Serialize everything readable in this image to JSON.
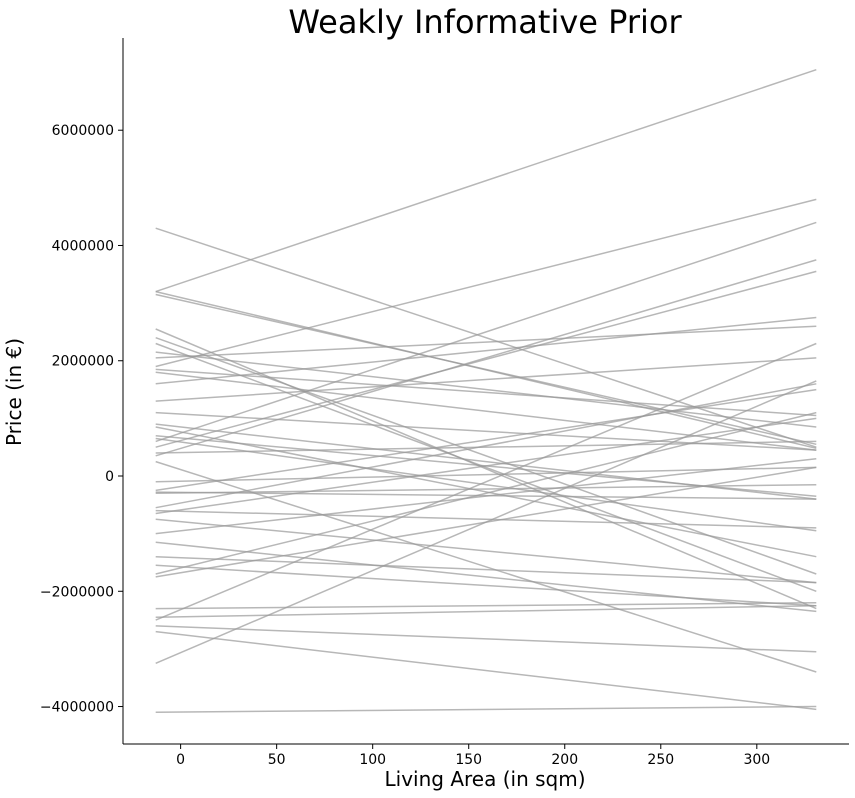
{
  "chart_data": {
    "type": "line",
    "title": "Weakly Informative Prior",
    "xlabel": "Living Area (in sqm)",
    "ylabel": "Price (in €)",
    "xlim": [
      -30,
      348
    ],
    "ylim": [
      -4650000,
      7600000
    ],
    "xticks": [
      0,
      50,
      100,
      150,
      200,
      250,
      300
    ],
    "xtick_labels": [
      "0",
      "50",
      "100",
      "150",
      "200",
      "250",
      "300"
    ],
    "yticks": [
      -4000000,
      -2000000,
      0,
      2000000,
      4000000,
      6000000
    ],
    "ytick_labels": [
      "−4000000",
      "−2000000",
      "0",
      "2000000",
      "4000000",
      "6000000"
    ],
    "grid": false,
    "line_color": "#999999",
    "line_alpha": 0.7,
    "x": [
      -13,
      331
    ],
    "series": [
      {
        "values": [
          4300000,
          500000
        ]
      },
      {
        "values": [
          3200000,
          7050000
        ]
      },
      {
        "values": [
          3200000,
          480000
        ]
      },
      {
        "values": [
          3150000,
          550000
        ]
      },
      {
        "values": [
          2550000,
          -2300000
        ]
      },
      {
        "values": [
          2400000,
          -1700000
        ]
      },
      {
        "values": [
          2300000,
          -2000000
        ]
      },
      {
        "values": [
          2150000,
          850000
        ]
      },
      {
        "values": [
          2050000,
          2600000
        ]
      },
      {
        "values": [
          1900000,
          4800000
        ]
      },
      {
        "values": [
          1850000,
          1050000
        ]
      },
      {
        "values": [
          1800000,
          450000
        ]
      },
      {
        "values": [
          1600000,
          2750000
        ]
      },
      {
        "values": [
          1300000,
          2050000
        ]
      },
      {
        "values": [
          1100000,
          450000
        ]
      },
      {
        "values": [
          900000,
          -400000
        ]
      },
      {
        "values": [
          850000,
          -1400000
        ]
      },
      {
        "values": [
          700000,
          -350000
        ]
      },
      {
        "values": [
          650000,
          -950000
        ]
      },
      {
        "values": [
          600000,
          4400000
        ]
      },
      {
        "values": [
          500000,
          3550000
        ]
      },
      {
        "values": [
          400000,
          600000
        ]
      },
      {
        "values": [
          350000,
          3750000
        ]
      },
      {
        "values": [
          250000,
          -3400000
        ]
      },
      {
        "values": [
          -100000,
          150000
        ]
      },
      {
        "values": [
          -250000,
          1500000
        ]
      },
      {
        "values": [
          -280000,
          -400000
        ]
      },
      {
        "values": [
          -300000,
          -150000
        ]
      },
      {
        "values": [
          -550000,
          1600000
        ]
      },
      {
        "values": [
          -600000,
          -900000
        ]
      },
      {
        "values": [
          -650000,
          1000000
        ]
      },
      {
        "values": [
          -750000,
          -1850000
        ]
      },
      {
        "values": [
          -1000000,
          300000
        ]
      },
      {
        "values": [
          -1150000,
          -2350000
        ]
      },
      {
        "values": [
          -1400000,
          -1850000
        ]
      },
      {
        "values": [
          -1550000,
          -2250000
        ]
      },
      {
        "values": [
          -1700000,
          1100000
        ]
      },
      {
        "values": [
          -1750000,
          150000
        ]
      },
      {
        "values": [
          -2300000,
          -2200000
        ]
      },
      {
        "values": [
          -2450000,
          -2250000
        ]
      },
      {
        "values": [
          -2500000,
          2300000
        ]
      },
      {
        "values": [
          -2600000,
          -3050000
        ]
      },
      {
        "values": [
          -2700000,
          -4050000
        ]
      },
      {
        "values": [
          -3250000,
          1650000
        ]
      },
      {
        "values": [
          -4100000,
          -4000000
        ]
      }
    ]
  }
}
